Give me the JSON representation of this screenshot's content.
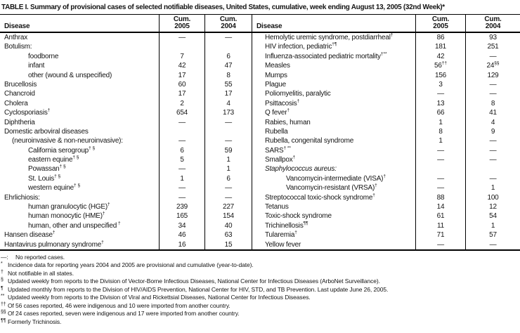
{
  "title": "TABLE I. Summary of provisional cases of selected notifiable diseases, United States, cumulative, week ending August 13, 2005 (32nd Week)*",
  "colors": {
    "text": "#141414",
    "border": "#000000",
    "background": "#ffffff"
  },
  "no_cases_symbol": "—",
  "table": {
    "header": {
      "disease": "Disease",
      "cum": "Cum.",
      "y2005": "2005",
      "y2004": "2004"
    },
    "rows": [
      {
        "l": {
          "label": "Anthrax",
          "ind": 0,
          "v05": "—",
          "v04": "—"
        },
        "r": {
          "label": "Hemolytic uremic syndrome, postdiarrheal",
          "sup": "†",
          "ind": 0,
          "v05": "86",
          "v04": "93"
        }
      },
      {
        "l": {
          "label": "Botulism:",
          "ind": 0,
          "v05": "",
          "v04": ""
        },
        "r": {
          "label": "HIV infection, pediatric",
          "sup": "†¶",
          "ind": 0,
          "v05": "181",
          "v04": "251"
        }
      },
      {
        "l": {
          "label": "foodborne",
          "ind": 2,
          "v05": "7",
          "v04": "6"
        },
        "r": {
          "label": "Influenza-associated pediatric mortality",
          "sup": "†**",
          "ind": 0,
          "v05": "42",
          "v04": "—"
        }
      },
      {
        "l": {
          "label": "infant",
          "ind": 2,
          "v05": "42",
          "v04": "47"
        },
        "r": {
          "label": "Measles",
          "ind": 0,
          "v05": "56",
          "v05s": "††",
          "v04": "24",
          "v04s": "§§"
        }
      },
      {
        "l": {
          "label": "other (wound & unspecified)",
          "ind": 2,
          "v05": "17",
          "v04": "8"
        },
        "r": {
          "label": "Mumps",
          "ind": 0,
          "v05": "156",
          "v04": "129"
        }
      },
      {
        "l": {
          "label": "Brucellosis",
          "ind": 0,
          "v05": "60",
          "v04": "55"
        },
        "r": {
          "label": "Plague",
          "ind": 0,
          "v05": "3",
          "v04": "—"
        }
      },
      {
        "l": {
          "label": "Chancroid",
          "ind": 0,
          "v05": "17",
          "v04": "17"
        },
        "r": {
          "label": "Poliomyelitis, paralytic",
          "ind": 0,
          "v05": "—",
          "v04": "—"
        }
      },
      {
        "l": {
          "label": "Cholera",
          "ind": 0,
          "v05": "2",
          "v04": "4"
        },
        "r": {
          "label": "Psittacosis",
          "sup": "†",
          "ind": 0,
          "v05": "13",
          "v04": "8"
        }
      },
      {
        "l": {
          "label": "Cyclosporiasis",
          "sup": "†",
          "ind": 0,
          "v05": "654",
          "v04": "173"
        },
        "r": {
          "label": "Q fever",
          "sup": "†",
          "ind": 0,
          "v05": "66",
          "v04": "41"
        }
      },
      {
        "l": {
          "label": "Diphtheria",
          "ind": 0,
          "v05": "—",
          "v04": "—"
        },
        "r": {
          "label": "Rabies, human",
          "ind": 0,
          "v05": "1",
          "v04": "4"
        }
      },
      {
        "l": {
          "label": "Domestic arboviral diseases",
          "ind": 0,
          "v05": "",
          "v04": ""
        },
        "r": {
          "label": "Rubella",
          "ind": 0,
          "v05": "8",
          "v04": "9"
        }
      },
      {
        "l": {
          "label": "(neuroinvasive & non-neuroinvasive):",
          "ind": 1,
          "v05": "—",
          "v04": "—"
        },
        "r": {
          "label": "Rubella, congenital syndrome",
          "ind": 0,
          "v05": "1",
          "v04": "—"
        }
      },
      {
        "l": {
          "label": "California serogroup",
          "sup": "† §",
          "ind": 2,
          "v05": "6",
          "v04": "59"
        },
        "r": {
          "label": "SARS",
          "sup": "† **",
          "ind": 0,
          "v05": "—",
          "v04": "—"
        }
      },
      {
        "l": {
          "label": "eastern equine",
          "sup": "† §",
          "ind": 2,
          "v05": "5",
          "v04": "1"
        },
        "r": {
          "label": "Smallpox",
          "sup": "†",
          "ind": 0,
          "v05": "—",
          "v04": "—"
        }
      },
      {
        "l": {
          "label": "Powassan",
          "sup": "† §",
          "ind": 2,
          "v05": "—",
          "v04": "1"
        },
        "r": {
          "label": "Staphylococcus aureus:",
          "it": true,
          "ind": 0,
          "v05": "",
          "v04": ""
        }
      },
      {
        "l": {
          "label": "St. Louis",
          "sup": "† §",
          "ind": 2,
          "v05": "1",
          "v04": "6"
        },
        "r": {
          "label": "Vancomycin-intermediate (VISA)",
          "sup": "†",
          "ind": 2,
          "v05": "—",
          "v04": "—"
        }
      },
      {
        "l": {
          "label": "western equine",
          "sup": "† §",
          "ind": 2,
          "v05": "—",
          "v04": "—"
        },
        "r": {
          "label": "Vancomycin-resistant (VRSA)",
          "sup": "†",
          "ind": 2,
          "v05": "—",
          "v04": "1"
        }
      },
      {
        "l": {
          "label": "Ehrlichiosis:",
          "ind": 0,
          "v05": "—",
          "v04": "—"
        },
        "r": {
          "label": "Streptococcal toxic-shock syndrome",
          "sup": "†",
          "ind": 0,
          "v05": "88",
          "v04": "100"
        }
      },
      {
        "l": {
          "label": "human granulocytic (HGE)",
          "sup": "†",
          "ind": 2,
          "v05": "239",
          "v04": "227"
        },
        "r": {
          "label": "Tetanus",
          "ind": 0,
          "v05": "14",
          "v04": "12"
        }
      },
      {
        "l": {
          "label": "human monocytic (HME)",
          "sup": "†",
          "ind": 2,
          "v05": "165",
          "v04": "154"
        },
        "r": {
          "label": "Toxic-shock syndrome",
          "ind": 0,
          "v05": "61",
          "v04": "54"
        }
      },
      {
        "l": {
          "label": "human, other and unspecified",
          "sup": " †",
          "ind": 2,
          "v05": "34",
          "v04": "40"
        },
        "r": {
          "label": "Trichinellosis",
          "sup": "¶¶",
          "ind": 0,
          "v05": "11",
          "v04": "1"
        }
      },
      {
        "l": {
          "label": "Hansen disease",
          "sup": "†",
          "ind": 0,
          "v05": "46",
          "v04": "63"
        },
        "r": {
          "label": "Tularemia",
          "sup": "†",
          "ind": 0,
          "v05": "71",
          "v04": "57"
        }
      },
      {
        "l": {
          "label": "Hantavirus pulmonary syndrome",
          "sup": "†",
          "ind": 0,
          "v05": "16",
          "v04": "15"
        },
        "r": {
          "label": "Yellow fever",
          "ind": 0,
          "v05": "—",
          "v04": "—"
        }
      }
    ]
  },
  "footnotes": [
    {
      "marker": "—:",
      "sup": false,
      "text": "No reported cases."
    },
    {
      "marker": "*",
      "sup": true,
      "text": "Incidence data for reporting years 2004 and 2005 are provisional and cumulative (year-to-date)."
    },
    {
      "marker": "†",
      "sup": true,
      "text": "Not notifiable in all states."
    },
    {
      "marker": "§",
      "sup": true,
      "text": "Updated weekly from reports to the Division of Vector-Borne Infectious Diseases, National Center for Infectious Diseases (ArboNet Surveillance)."
    },
    {
      "marker": "¶",
      "sup": true,
      "text": "Updated monthly from reports to the Division of HIV/AIDS Prevention, National Center for HIV, STD, and TB Prevention. Last update June 26, 2005."
    },
    {
      "marker": "**",
      "sup": true,
      "text": "Updated weekly from reports to the Division of Viral and Rickettsial Diseases, National Center for Infectious Diseases."
    },
    {
      "marker": "††",
      "sup": true,
      "text": "Of 56 cases reported, 46 were indigenous and 10 were imported from another country."
    },
    {
      "marker": "§§",
      "sup": true,
      "text": "Of 24 cases reported, seven were indigenous and 17 were imported from another country."
    },
    {
      "marker": "¶¶",
      "sup": true,
      "text": "Formerly Trichinosis."
    }
  ]
}
